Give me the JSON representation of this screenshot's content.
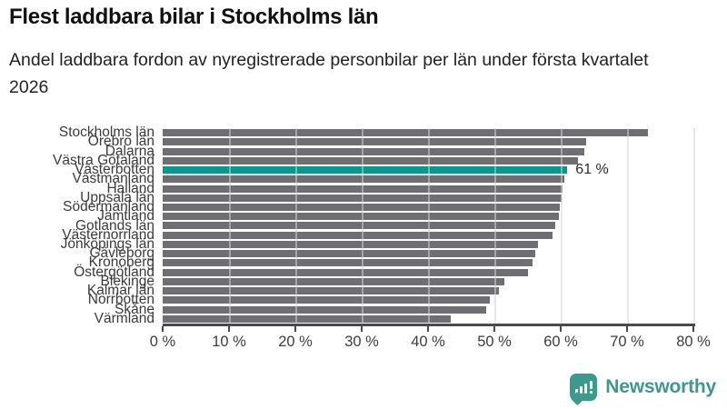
{
  "header": {
    "title": "Flest laddbara bilar i Stockholms län",
    "subtitle": "Andel laddbara fordon av nyregistrerade personbilar per län under första kvartalet 2026"
  },
  "chart_data": {
    "type": "bar",
    "orientation": "horizontal",
    "title": "Flest laddbara bilar i Stockholms län",
    "xlabel": "",
    "ylabel": "",
    "xlim": [
      0,
      80
    ],
    "grid_step": 10,
    "x_tick_labels": [
      "0 %",
      "10 %",
      "20 %",
      "30 %",
      "40 %",
      "50 %",
      "60 %",
      "70 %",
      "80 %"
    ],
    "categories": [
      "Stockholms län",
      "Örebro län",
      "Dalarna",
      "Västra Götaland",
      "Västerbotten",
      "Västmanland",
      "Halland",
      "Uppsala län",
      "Södermanland",
      "Jämtland",
      "Gotlands län",
      "Västernorrland",
      "Jönköpings län",
      "Gävleborg",
      "Kronoberg",
      "Östergötland",
      "Blekinge",
      "Kalmar län",
      "Norrbotten",
      "Skåne",
      "Värmland"
    ],
    "values": [
      73.2,
      63.8,
      63.5,
      62.6,
      61.0,
      60.5,
      60.3,
      60.1,
      59.9,
      59.7,
      59.2,
      58.7,
      56.6,
      56.1,
      55.8,
      55.1,
      51.5,
      50.7,
      49.3,
      48.7,
      43.4
    ],
    "unit": "%",
    "highlight": {
      "index": 4,
      "category": "Västerbotten",
      "annotation": "61 %"
    },
    "colors": {
      "bar": "#6E6E73",
      "highlight": "#009A90",
      "gridline": "#DADADA",
      "axis": "#4A4A4A"
    },
    "legend": null,
    "grid": true
  },
  "footer": {
    "brand": "Newsworthy",
    "logo_icon": "bar-chart-speech-bubble-icon",
    "brand_color": "#3B9A8B"
  }
}
